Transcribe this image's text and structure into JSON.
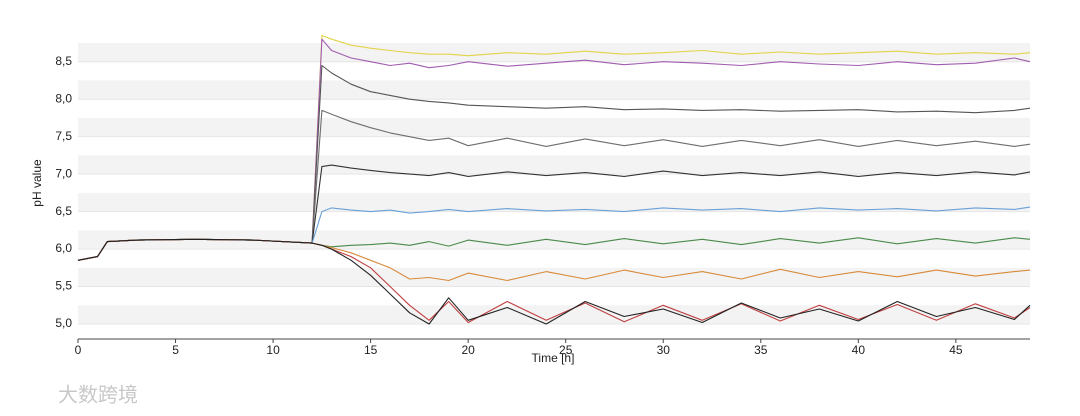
{
  "chart_data": {
    "type": "line",
    "x_label": "Time [h]",
    "y_label": "pH value",
    "watermark": "大数跨境",
    "x": [
      0,
      1,
      1.5,
      3,
      6,
      9,
      12,
      12.5,
      13,
      14,
      15,
      16,
      17,
      18,
      19,
      20,
      22,
      24,
      26,
      28,
      30,
      32,
      34,
      36,
      38,
      40,
      42,
      44,
      46,
      48,
      48.8
    ],
    "series": [
      {
        "color": "#e3d34a",
        "values": [
          5.85,
          5.9,
          6.1,
          6.12,
          6.13,
          6.12,
          6.08,
          8.85,
          8.8,
          8.72,
          8.68,
          8.65,
          8.62,
          8.6,
          8.6,
          8.58,
          8.62,
          8.6,
          8.64,
          8.6,
          8.62,
          8.65,
          8.6,
          8.63,
          8.6,
          8.62,
          8.64,
          8.6,
          8.62,
          8.6,
          8.62
        ]
      },
      {
        "color": "#a05cb0",
        "values": [
          5.85,
          5.9,
          6.1,
          6.12,
          6.13,
          6.12,
          6.08,
          8.8,
          8.65,
          8.55,
          8.5,
          8.45,
          8.48,
          8.42,
          8.45,
          8.5,
          8.44,
          8.48,
          8.52,
          8.46,
          8.5,
          8.48,
          8.45,
          8.5,
          8.47,
          8.45,
          8.5,
          8.46,
          8.48,
          8.55,
          8.5
        ]
      },
      {
        "color": "#555555",
        "values": [
          5.85,
          5.9,
          6.1,
          6.12,
          6.13,
          6.12,
          6.08,
          8.45,
          8.35,
          8.2,
          8.1,
          8.05,
          8.0,
          7.97,
          7.95,
          7.92,
          7.9,
          7.88,
          7.9,
          7.86,
          7.87,
          7.85,
          7.86,
          7.84,
          7.85,
          7.86,
          7.83,
          7.84,
          7.82,
          7.85,
          7.88
        ]
      },
      {
        "color": "#6e6e6e",
        "values": [
          5.85,
          5.9,
          6.1,
          6.12,
          6.13,
          6.12,
          6.08,
          7.85,
          7.8,
          7.7,
          7.62,
          7.55,
          7.5,
          7.45,
          7.48,
          7.38,
          7.48,
          7.37,
          7.47,
          7.38,
          7.46,
          7.37,
          7.45,
          7.38,
          7.46,
          7.37,
          7.45,
          7.38,
          7.44,
          7.37,
          7.4
        ]
      },
      {
        "color": "#333333",
        "values": [
          5.85,
          5.9,
          6.1,
          6.12,
          6.13,
          6.12,
          6.08,
          7.1,
          7.12,
          7.08,
          7.05,
          7.02,
          7.0,
          6.98,
          7.02,
          6.97,
          7.03,
          6.98,
          7.02,
          6.97,
          7.04,
          6.98,
          7.02,
          6.98,
          7.03,
          6.97,
          7.02,
          6.98,
          7.03,
          6.99,
          7.03
        ]
      },
      {
        "color": "#6aa0d8",
        "values": [
          5.85,
          5.9,
          6.1,
          6.12,
          6.13,
          6.12,
          6.08,
          6.5,
          6.55,
          6.52,
          6.5,
          6.52,
          6.48,
          6.5,
          6.53,
          6.5,
          6.54,
          6.51,
          6.53,
          6.5,
          6.55,
          6.52,
          6.54,
          6.5,
          6.55,
          6.52,
          6.54,
          6.51,
          6.55,
          6.53,
          6.56
        ]
      },
      {
        "color": "#4a8a4a",
        "values": [
          5.85,
          5.9,
          6.1,
          6.12,
          6.13,
          6.12,
          6.08,
          6.05,
          6.03,
          6.05,
          6.06,
          6.08,
          6.05,
          6.1,
          6.04,
          6.12,
          6.05,
          6.13,
          6.06,
          6.14,
          6.07,
          6.13,
          6.06,
          6.14,
          6.08,
          6.15,
          6.07,
          6.14,
          6.08,
          6.15,
          6.13
        ]
      },
      {
        "color": "#d88a3a",
        "values": [
          5.85,
          5.9,
          6.1,
          6.12,
          6.13,
          6.12,
          6.08,
          6.05,
          6.02,
          5.95,
          5.85,
          5.75,
          5.6,
          5.62,
          5.58,
          5.68,
          5.58,
          5.7,
          5.6,
          5.72,
          5.62,
          5.7,
          5.6,
          5.73,
          5.62,
          5.7,
          5.63,
          5.72,
          5.64,
          5.7,
          5.72
        ]
      },
      {
        "color": "#c04040",
        "values": [
          5.85,
          5.9,
          6.1,
          6.12,
          6.13,
          6.12,
          6.08,
          6.05,
          6.0,
          5.9,
          5.75,
          5.5,
          5.25,
          5.05,
          5.3,
          5.02,
          5.3,
          5.05,
          5.28,
          5.03,
          5.25,
          5.05,
          5.27,
          5.04,
          5.25,
          5.06,
          5.26,
          5.05,
          5.27,
          5.08,
          5.22
        ]
      },
      {
        "color": "#222222",
        "values": [
          5.85,
          5.9,
          6.1,
          6.12,
          6.13,
          6.12,
          6.08,
          6.05,
          6.0,
          5.85,
          5.65,
          5.4,
          5.15,
          5.0,
          5.35,
          5.05,
          5.22,
          5.0,
          5.3,
          5.1,
          5.2,
          5.02,
          5.28,
          5.08,
          5.2,
          5.04,
          5.3,
          5.1,
          5.22,
          5.06,
          5.25
        ]
      }
    ],
    "xlim": [
      0,
      48.8
    ],
    "xticks": [
      0,
      5,
      10,
      15,
      20,
      25,
      30,
      35,
      40,
      45
    ],
    "ylim": [
      4.8,
      8.95
    ],
    "yticks": [
      {
        "value": 5,
        "label": "5,0"
      },
      {
        "value": 5.5,
        "label": "5,5"
      },
      {
        "value": 6,
        "label": "6,0"
      },
      {
        "value": 6.5,
        "label": "6,5"
      },
      {
        "value": 7,
        "label": "7,0"
      },
      {
        "value": 7.5,
        "label": "7,5"
      },
      {
        "value": 8,
        "label": "8,0"
      },
      {
        "value": 8.5,
        "label": "8,5"
      }
    ],
    "grid": true
  }
}
